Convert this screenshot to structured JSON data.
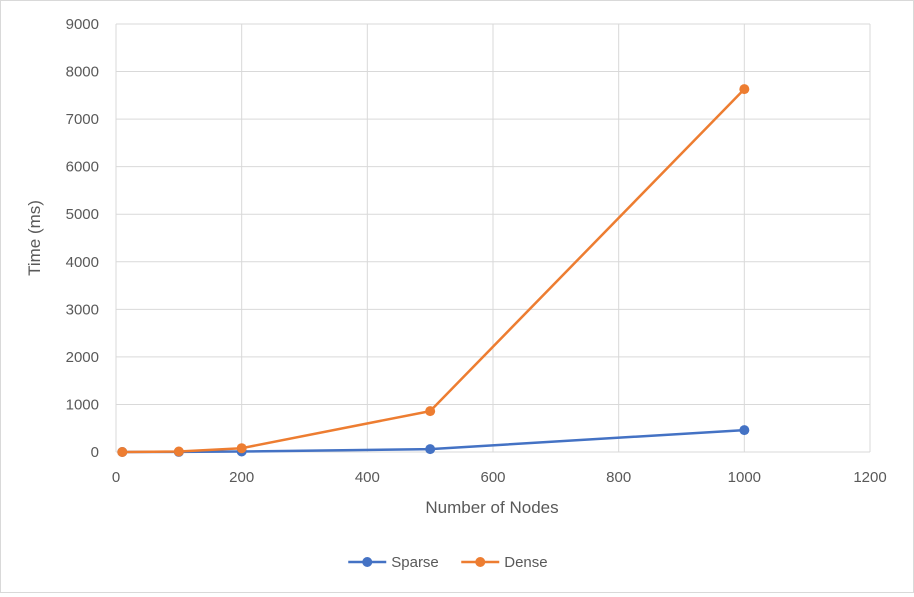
{
  "chart_data": {
    "type": "scatter",
    "title": "",
    "xlabel": "Number of Nodes",
    "ylabel": "Time (ms)",
    "xlim": [
      0,
      1200
    ],
    "ylim": [
      0,
      9000
    ],
    "x_ticks": [
      0,
      200,
      400,
      600,
      800,
      1000,
      1200
    ],
    "y_ticks": [
      0,
      1000,
      2000,
      3000,
      4000,
      5000,
      6000,
      7000,
      8000,
      9000
    ],
    "grid": true,
    "legend": "bottom",
    "series": [
      {
        "name": "Sparse",
        "color": "#4472c4",
        "x": [
          10,
          100,
          200,
          500,
          1000
        ],
        "y": [
          0,
          2,
          10,
          60,
          460
        ]
      },
      {
        "name": "Dense",
        "color": "#ed7d31",
        "x": [
          10,
          100,
          200,
          500,
          1000
        ],
        "y": [
          0,
          10,
          80,
          860,
          7630
        ]
      }
    ]
  }
}
